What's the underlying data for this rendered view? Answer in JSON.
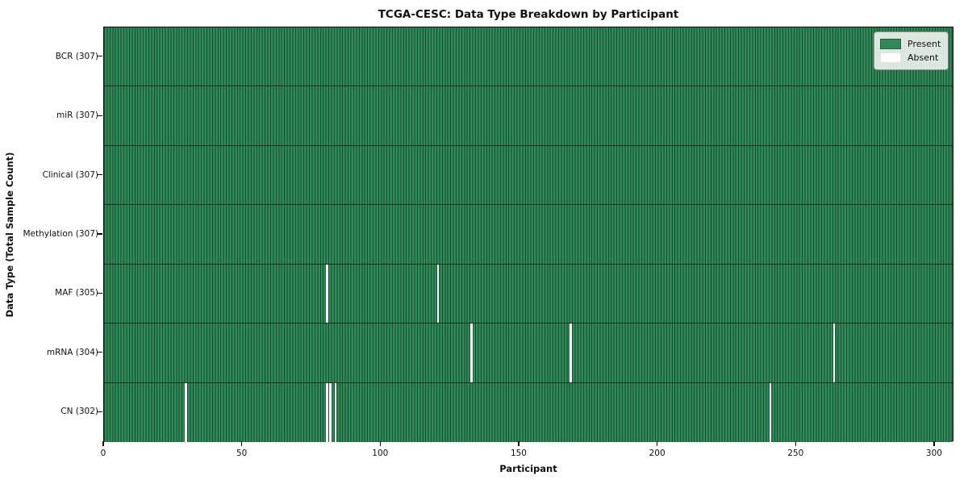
{
  "chart_data": {
    "type": "heatmap",
    "title": "TCGA-CESC: Data Type Breakdown by Participant",
    "xlabel": "Participant",
    "ylabel": "Data Type (Total Sample Count)",
    "x_min": 0,
    "x_max": 307,
    "x_ticks": [
      0,
      50,
      100,
      150,
      200,
      250,
      300
    ],
    "total_participants": 307,
    "rows": [
      {
        "label": "BCR (307)",
        "data_type": "BCR",
        "present_count": 307,
        "absent_participants": []
      },
      {
        "label": "miR (307)",
        "data_type": "miR",
        "present_count": 307,
        "absent_participants": []
      },
      {
        "label": "Clinical (307)",
        "data_type": "Clinical",
        "present_count": 307,
        "absent_participants": []
      },
      {
        "label": "Methylation (307)",
        "data_type": "Methylation",
        "present_count": 307,
        "absent_participants": []
      },
      {
        "label": "MAF (305)",
        "data_type": "MAF",
        "present_count": 305,
        "absent_participants": [
          80,
          120
        ]
      },
      {
        "label": "mRNA (304)",
        "data_type": "mRNA",
        "present_count": 304,
        "absent_participants": [
          132,
          168,
          263
        ]
      },
      {
        "label": "CN (302)",
        "data_type": "CN",
        "present_count": 302,
        "absent_participants": [
          29,
          80,
          81,
          83,
          240
        ]
      }
    ],
    "legend": [
      {
        "label": "Present",
        "color": "#2e8b57"
      },
      {
        "label": "Absent",
        "color": "#ffffff"
      }
    ],
    "legend_position": "upper right",
    "grid": false,
    "colors": {
      "present": "#2e8b57",
      "absent": "#ffffff",
      "cell_border": "#1c4a30",
      "row_separator": "#14301f",
      "plot_border": "#0a0a0a"
    }
  }
}
